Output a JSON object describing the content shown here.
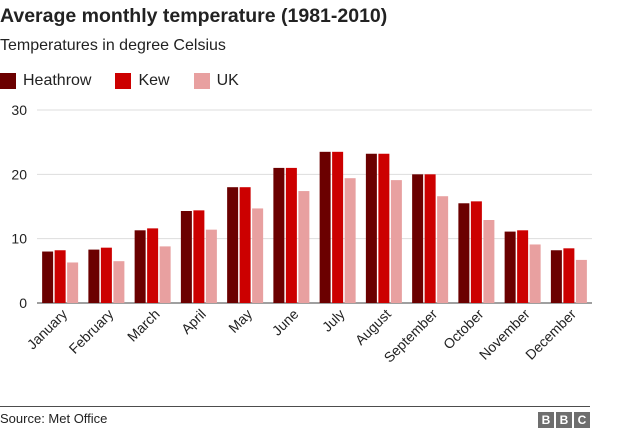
{
  "header": {
    "title": "Average monthly temperature (1981-2010)",
    "subtitle": "Temperatures in degree Celsius"
  },
  "legend": [
    {
      "label": "Heathrow",
      "color": "#6b0000"
    },
    {
      "label": "Kew",
      "color": "#cc0000"
    },
    {
      "label": "UK",
      "color": "#e8a0a0"
    }
  ],
  "footer": {
    "source": "Source: Met Office",
    "logo_letters": [
      "B",
      "B",
      "C"
    ]
  },
  "chart_data": {
    "type": "bar",
    "categories": [
      "January",
      "February",
      "March",
      "April",
      "May",
      "June",
      "July",
      "August",
      "September",
      "October",
      "November",
      "December"
    ],
    "series": [
      {
        "name": "Heathrow",
        "color": "#6b0000",
        "values": [
          8.0,
          8.3,
          11.3,
          14.3,
          18.0,
          21.0,
          23.5,
          23.2,
          20.0,
          15.5,
          11.1,
          8.2
        ]
      },
      {
        "name": "Kew",
        "color": "#cc0000",
        "values": [
          8.2,
          8.6,
          11.6,
          14.4,
          18.0,
          21.0,
          23.5,
          23.2,
          20.0,
          15.8,
          11.3,
          8.5
        ]
      },
      {
        "name": "UK",
        "color": "#e8a0a0",
        "values": [
          6.3,
          6.5,
          8.8,
          11.4,
          14.7,
          17.4,
          19.4,
          19.1,
          16.6,
          12.9,
          9.1,
          6.7
        ]
      }
    ],
    "ylim": [
      0,
      30
    ],
    "yticks": [
      0,
      10,
      20,
      30
    ],
    "grid": true,
    "legend_position": "top-left"
  }
}
